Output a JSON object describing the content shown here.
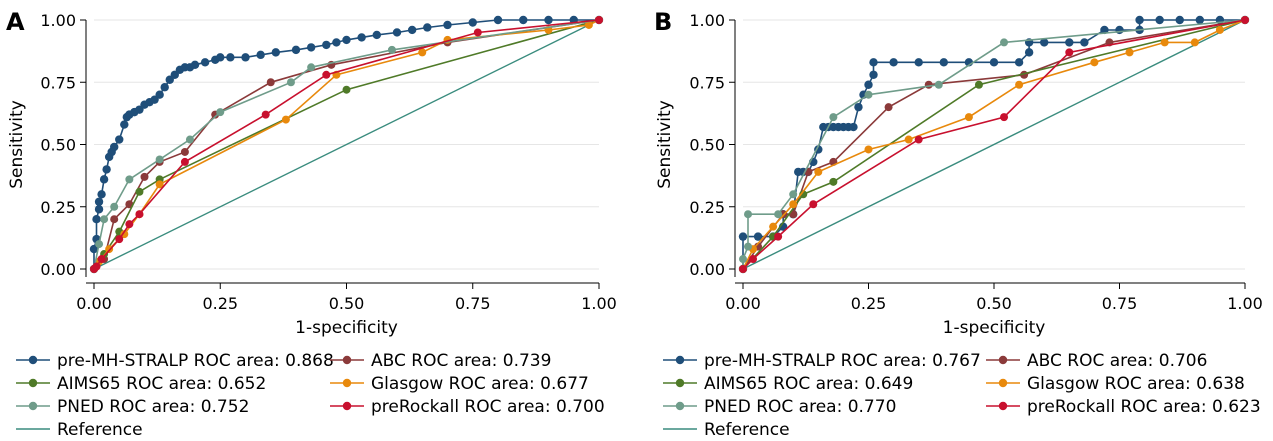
{
  "chart_data": [
    {
      "type": "line",
      "panel_label": "A",
      "xlabel": "1-specificity",
      "ylabel": "Sensitivity",
      "xlim": [
        0,
        1
      ],
      "ylim": [
        0,
        1
      ],
      "x_ticks": [
        "0.00",
        "0.25",
        "0.50",
        "0.75",
        "1.00"
      ],
      "y_ticks": [
        "0.00",
        "0.25",
        "0.50",
        "0.75",
        "1.00"
      ],
      "grid": true,
      "legend_position": "bottom",
      "series": [
        {
          "name": "pre-MH-STRALP ROC area: 0.868",
          "color": "#1f4e79",
          "dense": true,
          "x": [
            0,
            0,
            0.005,
            0.005,
            0.01,
            0.01,
            0.015,
            0.02,
            0.025,
            0.03,
            0.035,
            0.04,
            0.05,
            0.06,
            0.065,
            0.07,
            0.08,
            0.09,
            0.1,
            0.11,
            0.12,
            0.13,
            0.14,
            0.15,
            0.16,
            0.17,
            0.18,
            0.19,
            0.2,
            0.22,
            0.24,
            0.25,
            0.27,
            0.3,
            0.33,
            0.36,
            0.4,
            0.43,
            0.46,
            0.48,
            0.5,
            0.53,
            0.56,
            0.6,
            0.63,
            0.66,
            0.7,
            0.75,
            0.8,
            0.85,
            0.9,
            0.95,
            1
          ],
          "y": [
            0,
            0.08,
            0.12,
            0.2,
            0.24,
            0.27,
            0.3,
            0.36,
            0.4,
            0.45,
            0.47,
            0.49,
            0.52,
            0.58,
            0.61,
            0.62,
            0.63,
            0.64,
            0.66,
            0.67,
            0.68,
            0.7,
            0.73,
            0.76,
            0.78,
            0.8,
            0.81,
            0.81,
            0.82,
            0.83,
            0.84,
            0.85,
            0.85,
            0.85,
            0.86,
            0.87,
            0.88,
            0.89,
            0.9,
            0.91,
            0.92,
            0.93,
            0.94,
            0.95,
            0.96,
            0.97,
            0.98,
            0.99,
            1,
            1,
            1,
            1,
            1
          ]
        },
        {
          "name": "ABC ROC area: 0.739",
          "color": "#8b3a3a",
          "x": [
            0,
            0.02,
            0.04,
            0.07,
            0.1,
            0.13,
            0.18,
            0.24,
            0.35,
            0.47,
            0.7,
            1
          ],
          "y": [
            0,
            0.04,
            0.2,
            0.26,
            0.37,
            0.43,
            0.47,
            0.62,
            0.75,
            0.82,
            0.91,
            1
          ]
        },
        {
          "name": "AIMS65 ROC area: 0.652",
          "color": "#4f7a28",
          "x": [
            0,
            0.02,
            0.05,
            0.09,
            0.13,
            0.5,
            1
          ],
          "y": [
            0,
            0.06,
            0.15,
            0.31,
            0.36,
            0.72,
            1
          ]
        },
        {
          "name": "Glasgow ROC area: 0.677",
          "color": "#e8890c",
          "x": [
            0,
            0.01,
            0.03,
            0.06,
            0.09,
            0.13,
            0.38,
            0.48,
            0.65,
            0.7,
            0.9,
            0.98,
            1
          ],
          "y": [
            0,
            0.03,
            0.08,
            0.14,
            0.22,
            0.34,
            0.6,
            0.78,
            0.87,
            0.92,
            0.96,
            0.98,
            1
          ]
        },
        {
          "name": "PNED ROC area: 0.752",
          "color": "#6f9c8a",
          "x": [
            0,
            0.01,
            0.02,
            0.04,
            0.07,
            0.13,
            0.19,
            0.25,
            0.39,
            0.43,
            0.59,
            1
          ],
          "y": [
            0,
            0.1,
            0.2,
            0.25,
            0.36,
            0.44,
            0.52,
            0.63,
            0.75,
            0.81,
            0.88,
            1
          ]
        },
        {
          "name": "preRockall ROC area: 0.700",
          "color": "#c8102e",
          "x": [
            0,
            0.005,
            0.015,
            0.05,
            0.07,
            0.09,
            0.18,
            0.34,
            0.46,
            0.76,
            1
          ],
          "y": [
            0,
            0.01,
            0.04,
            0.12,
            0.18,
            0.22,
            0.43,
            0.62,
            0.78,
            0.95,
            1
          ]
        },
        {
          "name": "Reference",
          "color": "#3a8c7e",
          "line_only": true,
          "x": [
            0,
            1
          ],
          "y": [
            0,
            1
          ]
        }
      ]
    },
    {
      "type": "line",
      "panel_label": "B",
      "xlabel": "1-specificity",
      "ylabel": "Sensitivity",
      "xlim": [
        0,
        1
      ],
      "ylim": [
        0,
        1
      ],
      "x_ticks": [
        "0.00",
        "0.25",
        "0.50",
        "0.75",
        "1.00"
      ],
      "y_ticks": [
        "0.00",
        "0.25",
        "0.50",
        "0.75",
        "1.00"
      ],
      "grid": true,
      "legend_position": "bottom",
      "series": [
        {
          "name": "pre-MH-STRALP ROC area: 0.767",
          "color": "#1f4e79",
          "dense": true,
          "x": [
            0,
            0,
            0.03,
            0.06,
            0.08,
            0.08,
            0.1,
            0.11,
            0.12,
            0.13,
            0.14,
            0.15,
            0.16,
            0.17,
            0.18,
            0.19,
            0.2,
            0.21,
            0.22,
            0.23,
            0.24,
            0.25,
            0.26,
            0.26,
            0.3,
            0.35,
            0.4,
            0.45,
            0.5,
            0.55,
            0.57,
            0.57,
            0.6,
            0.65,
            0.68,
            0.72,
            0.75,
            0.79,
            0.79,
            0.83,
            0.87,
            0.91,
            0.95,
            1
          ],
          "y": [
            0,
            0.13,
            0.13,
            0.13,
            0.17,
            0.22,
            0.22,
            0.39,
            0.39,
            0.39,
            0.43,
            0.48,
            0.57,
            0.57,
            0.57,
            0.57,
            0.57,
            0.57,
            0.57,
            0.65,
            0.7,
            0.74,
            0.78,
            0.83,
            0.83,
            0.83,
            0.83,
            0.83,
            0.83,
            0.83,
            0.87,
            0.91,
            0.91,
            0.91,
            0.91,
            0.96,
            0.96,
            0.96,
            1,
            1,
            1,
            1,
            1,
            1
          ]
        },
        {
          "name": "ABC ROC area: 0.706",
          "color": "#8b3a3a",
          "x": [
            0,
            0.03,
            0.08,
            0.1,
            0.13,
            0.18,
            0.29,
            0.37,
            0.56,
            0.73,
            1
          ],
          "y": [
            0,
            0.09,
            0.22,
            0.22,
            0.39,
            0.43,
            0.65,
            0.74,
            0.78,
            0.91,
            1
          ]
        },
        {
          "name": "AIMS65 ROC area: 0.649",
          "color": "#4f7a28",
          "x": [
            0,
            0.06,
            0.12,
            0.18,
            0.47,
            1
          ],
          "y": [
            0,
            0.13,
            0.3,
            0.35,
            0.74,
            1
          ]
        },
        {
          "name": "Glasgow ROC area: 0.638",
          "color": "#e8890c",
          "x": [
            0,
            0.02,
            0.06,
            0.1,
            0.15,
            0.25,
            0.33,
            0.45,
            0.55,
            0.7,
            0.77,
            0.84,
            0.9,
            0.95,
            1
          ],
          "y": [
            0,
            0.08,
            0.17,
            0.26,
            0.39,
            0.48,
            0.52,
            0.61,
            0.74,
            0.83,
            0.87,
            0.91,
            0.91,
            0.96,
            1
          ]
        },
        {
          "name": "PNED ROC area: 0.770",
          "color": "#6f9c8a",
          "x": [
            0,
            0,
            0.01,
            0.01,
            0.07,
            0.1,
            0.18,
            0.25,
            0.39,
            0.52,
            1
          ],
          "y": [
            0,
            0.04,
            0.09,
            0.22,
            0.22,
            0.3,
            0.61,
            0.7,
            0.74,
            0.91,
            1
          ]
        },
        {
          "name": "preRockall ROC area: 0.623",
          "color": "#c8102e",
          "x": [
            0,
            0.02,
            0.07,
            0.14,
            0.35,
            0.52,
            0.65,
            1
          ],
          "y": [
            0,
            0.04,
            0.13,
            0.26,
            0.52,
            0.61,
            0.87,
            1
          ]
        },
        {
          "name": "Reference",
          "color": "#3a8c7e",
          "line_only": true,
          "x": [
            0,
            1
          ],
          "y": [
            0,
            1
          ]
        }
      ]
    }
  ]
}
